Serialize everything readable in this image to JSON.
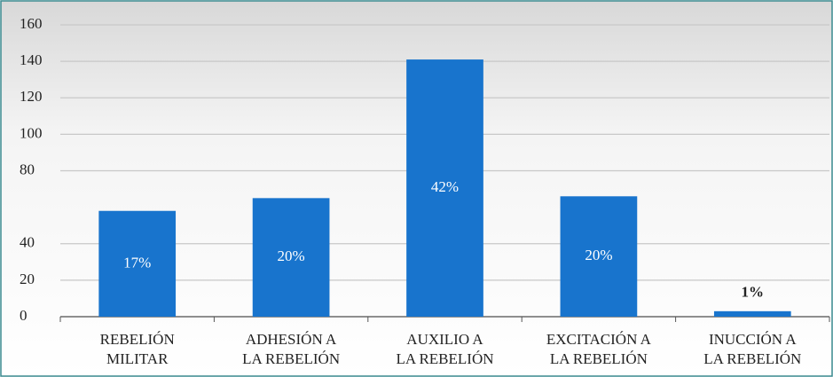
{
  "chart_data": {
    "type": "bar",
    "categories": [
      [
        "REBELIÓN",
        "MILITAR"
      ],
      [
        "ADHESIÓN A",
        "LA REBELIÓN"
      ],
      [
        "AUXILIO A",
        "LA REBELIÓN"
      ],
      [
        "EXCITACIÓN A",
        "LA REBELIÓN"
      ],
      [
        "INUCCIÓN A",
        "LA REBELIÓN"
      ]
    ],
    "values": [
      58,
      65,
      141,
      66,
      3
    ],
    "data_labels": [
      "17%",
      "20%",
      "42%",
      "20%",
      "1%"
    ],
    "color": "#1874cd",
    "ylim": [
      0,
      160
    ],
    "yticks": [
      0,
      20,
      40,
      80,
      100,
      120,
      140,
      160
    ],
    "grid": true
  }
}
